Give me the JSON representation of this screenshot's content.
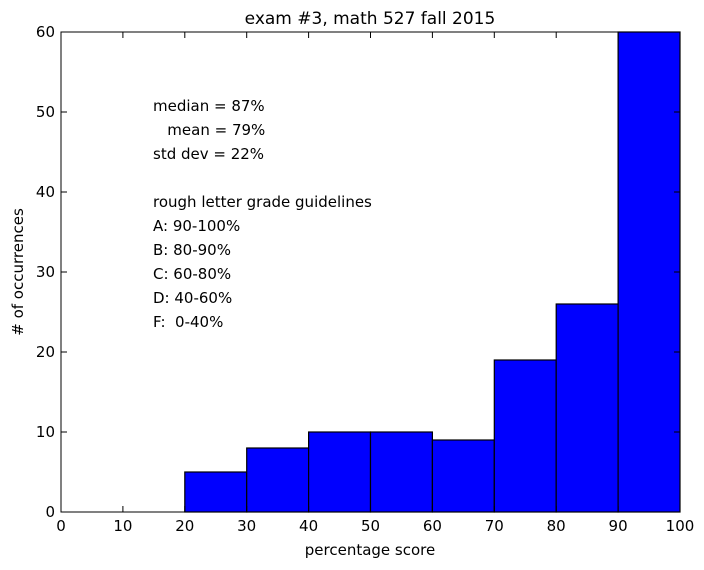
{
  "chart_data": {
    "type": "bar",
    "title": "exam #3, math 527 fall 2015",
    "xlabel": "percentage score",
    "ylabel": "# of occurrences",
    "xlim": [
      0,
      100
    ],
    "ylim": [
      0,
      60
    ],
    "bin_edges": [
      0,
      10,
      20,
      30,
      40,
      50,
      60,
      70,
      80,
      90,
      100
    ],
    "values": [
      0,
      0,
      5,
      8,
      10,
      10,
      9,
      19,
      26,
      60
    ],
    "x_ticks": [
      0,
      10,
      20,
      30,
      40,
      50,
      60,
      70,
      80,
      90,
      100
    ],
    "y_ticks": [
      0,
      10,
      20,
      30,
      40,
      50,
      60
    ],
    "bar_color": "#0000ff",
    "grid": false,
    "annotation_lines": [
      "median = 87%",
      "   mean = 79%",
      "std dev = 22%",
      "",
      "rough letter grade guidelines",
      "A: 90-100%",
      "B: 80-90%",
      "C: 60-80%",
      "D: 40-60%",
      "F:  0-40%"
    ]
  }
}
